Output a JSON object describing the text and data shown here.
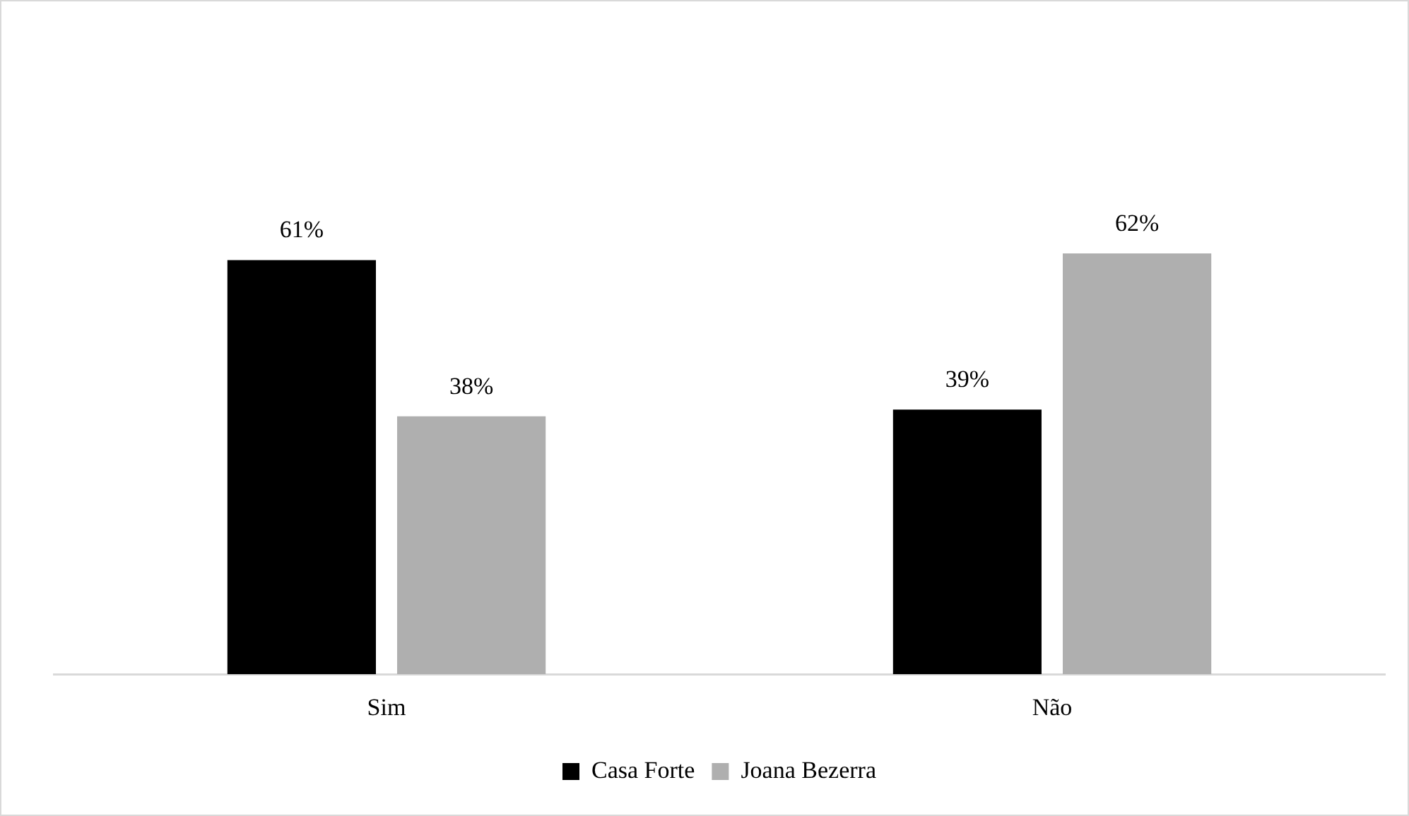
{
  "chart_data": {
    "type": "bar",
    "categories": [
      "Sim",
      "Não"
    ],
    "series": [
      {
        "name": "Casa Forte",
        "color": "#000000",
        "values": [
          61,
          39
        ],
        "value_labels": [
          "61%",
          "39%"
        ]
      },
      {
        "name": "Joana Bezerra",
        "color": "#afafaf",
        "values": [
          38,
          62
        ],
        "value_labels": [
          "38%",
          "62%"
        ]
      }
    ],
    "tick_labels": "x",
    "legend": "bottom",
    "grid": false
  }
}
